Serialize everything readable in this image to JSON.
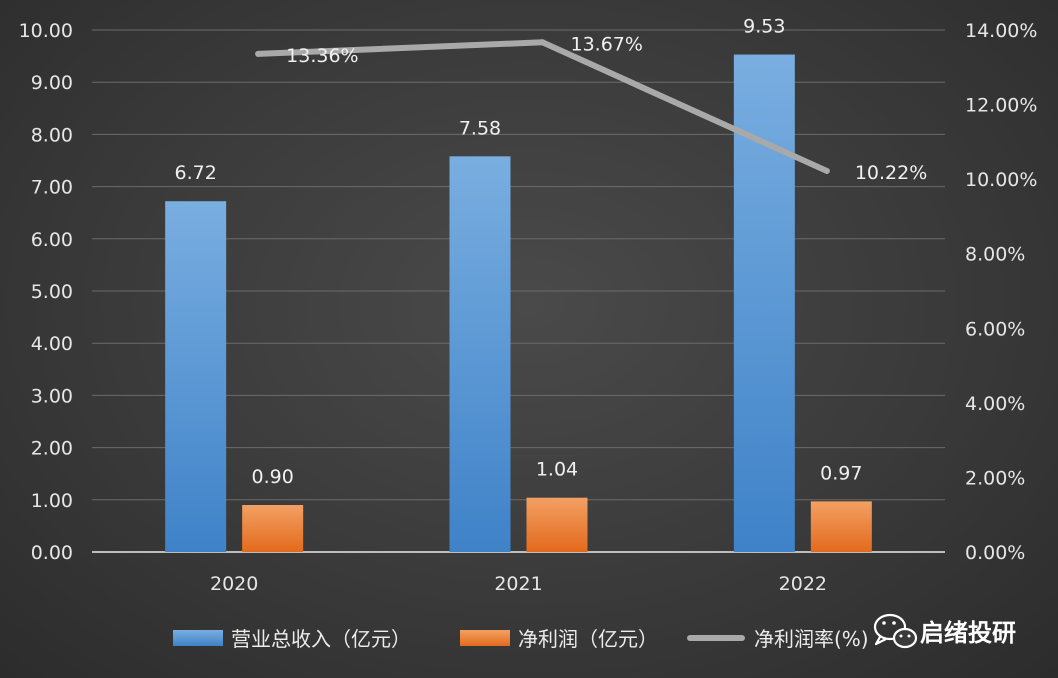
{
  "chart_data": {
    "type": "bar",
    "categories": [
      "2020",
      "2021",
      "2022"
    ],
    "series": [
      {
        "name": "营业总收入（亿元）",
        "kind": "bar",
        "axis": "left",
        "color": "#5b9bd5",
        "values": [
          6.72,
          7.58,
          9.53
        ],
        "labels": [
          "6.72",
          "7.58",
          "9.53"
        ]
      },
      {
        "name": "净利润（亿元）",
        "kind": "bar",
        "axis": "left",
        "color": "#ed7d31",
        "values": [
          0.9,
          1.04,
          0.97
        ],
        "labels": [
          "0.90",
          "1.04",
          "0.97"
        ]
      },
      {
        "name": "净利润率(%)",
        "kind": "line",
        "axis": "right",
        "color": "#a5a5a5",
        "values": [
          13.36,
          13.67,
          10.22
        ],
        "labels": [
          "13.36%",
          "13.67%",
          "10.22%"
        ]
      }
    ],
    "y_left": {
      "min": 0,
      "max": 10,
      "ticks": [
        "0.00",
        "1.00",
        "2.00",
        "3.00",
        "4.00",
        "5.00",
        "6.00",
        "7.00",
        "8.00",
        "9.00",
        "10.00"
      ]
    },
    "y_right": {
      "min": 0,
      "max": 14,
      "ticks": [
        "0.00%",
        "2.00%",
        "4.00%",
        "6.00%",
        "8.00%",
        "10.00%",
        "12.00%",
        "14.00%"
      ]
    },
    "grid": true,
    "legend_position": "bottom"
  },
  "watermark": {
    "text": "启绪投研",
    "icon": "wechat-icon"
  }
}
